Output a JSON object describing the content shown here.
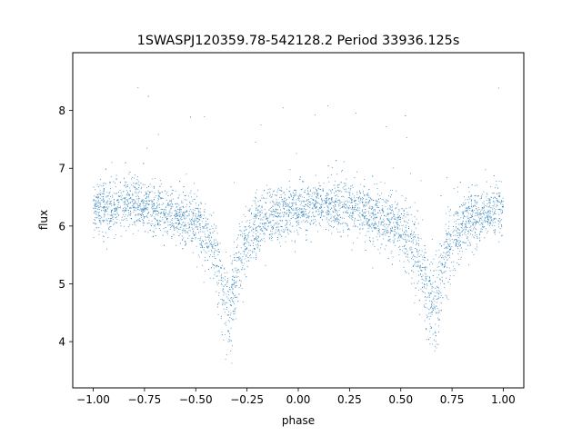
{
  "chart_data": {
    "type": "scatter",
    "title": "1SWASPJ120359.78-542128.2 Period 33936.125s",
    "xlabel": "phase",
    "ylabel": "flux",
    "xlim": [
      -1.1,
      1.1
    ],
    "ylim": [
      3.2,
      9.0
    ],
    "xticks": [
      -1.0,
      -0.75,
      -0.5,
      -0.25,
      0.0,
      0.25,
      0.5,
      0.75,
      1.0
    ],
    "xtick_labels": [
      "−1.00",
      "−0.75",
      "−0.50",
      "−0.25",
      "0.00",
      "0.25",
      "0.50",
      "0.75",
      "1.00"
    ],
    "yticks": [
      4,
      5,
      6,
      7,
      8
    ],
    "ytick_labels": [
      "4",
      "5",
      "6",
      "7",
      "8"
    ],
    "grid": false,
    "legend": "none",
    "point_color": "#1f77b4",
    "series": [
      {
        "phase_flux_profile": {
          "x": [
            -1.0,
            -0.9,
            -0.8,
            -0.7,
            -0.6,
            -0.5,
            -0.45,
            -0.4,
            -0.37,
            -0.34,
            -0.3,
            -0.25,
            -0.2,
            -0.1,
            0.0,
            0.1,
            0.2,
            0.3,
            0.4,
            0.5,
            0.55,
            0.6,
            0.63,
            0.66,
            0.7,
            0.75,
            0.8,
            0.9,
            1.0
          ],
          "y": [
            6.3,
            6.35,
            6.4,
            6.3,
            6.2,
            6.05,
            5.85,
            5.4,
            4.9,
            4.5,
            5.1,
            5.75,
            6.0,
            6.2,
            6.3,
            6.35,
            6.35,
            6.3,
            6.15,
            6.0,
            5.75,
            5.3,
            4.85,
            4.5,
            5.2,
            5.75,
            6.0,
            6.2,
            6.3
          ]
        }
      }
    ]
  }
}
